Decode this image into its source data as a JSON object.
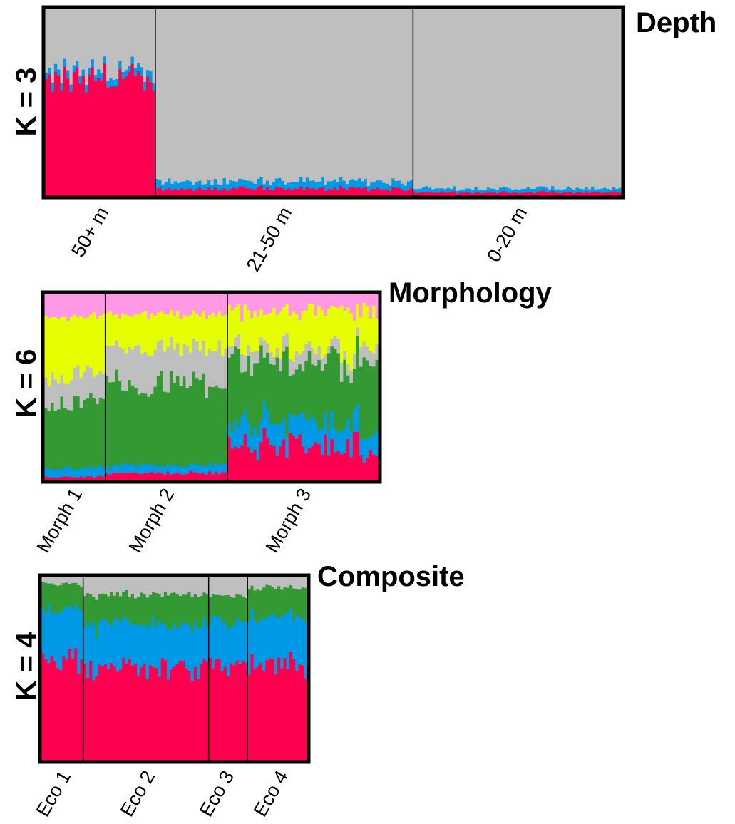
{
  "colors": {
    "red": "#ff0050",
    "blue": "#0099e6",
    "grey": "#bfbfbf",
    "green": "#339933",
    "yellow": "#e6ff00",
    "pink": "#ff99e6"
  },
  "chart_data": [
    {
      "type": "bar",
      "subtype": "stacked-admixture",
      "title": "Depth",
      "ylabel": "K = 3",
      "ylim": [
        0,
        1
      ],
      "cluster_order_bottom_to_top": [
        "red",
        "blue",
        "grey"
      ],
      "groups": [
        {
          "label": "50+ m",
          "n": 36,
          "profile": [
            0.62,
            0.04,
            0.34
          ]
        },
        {
          "label": "21-50 m",
          "n": 84,
          "profile": [
            0.04,
            0.04,
            0.92
          ]
        },
        {
          "label": "0-20 m",
          "n": 68,
          "profile": [
            0.02,
            0.02,
            0.96
          ]
        }
      ]
    },
    {
      "type": "bar",
      "subtype": "stacked-admixture",
      "title": "Morphology",
      "ylabel": "K = 6",
      "ylim": [
        0,
        1
      ],
      "cluster_order_bottom_to_top": [
        "red",
        "blue",
        "green",
        "grey",
        "yellow",
        "pink"
      ],
      "groups": [
        {
          "label": "Morph 1",
          "n": 19,
          "profile": [
            0.02,
            0.05,
            0.35,
            0.15,
            0.31,
            0.12
          ]
        },
        {
          "label": "Morph 2",
          "n": 38,
          "profile": [
            0.04,
            0.04,
            0.43,
            0.2,
            0.18,
            0.11
          ]
        },
        {
          "label": "Morph 3",
          "n": 47,
          "profile": [
            0.18,
            0.12,
            0.34,
            0.07,
            0.2,
            0.09
          ]
        }
      ]
    },
    {
      "type": "bar",
      "subtype": "stacked-admixture",
      "title": "Composite",
      "ylabel": "K = 4",
      "ylim": [
        0,
        1
      ],
      "cluster_order_bottom_to_top": [
        "red",
        "blue",
        "green",
        "grey"
      ],
      "groups": [
        {
          "label": "Eco 1",
          "n": 14,
          "profile": [
            0.54,
            0.28,
            0.14,
            0.04
          ]
        },
        {
          "label": "Eco 2",
          "n": 42,
          "profile": [
            0.5,
            0.24,
            0.16,
            0.1
          ]
        },
        {
          "label": "Eco 3",
          "n": 13,
          "profile": [
            0.52,
            0.24,
            0.14,
            0.1
          ]
        },
        {
          "label": "Eco 4",
          "n": 20,
          "profile": [
            0.52,
            0.26,
            0.16,
            0.06
          ]
        }
      ]
    }
  ]
}
